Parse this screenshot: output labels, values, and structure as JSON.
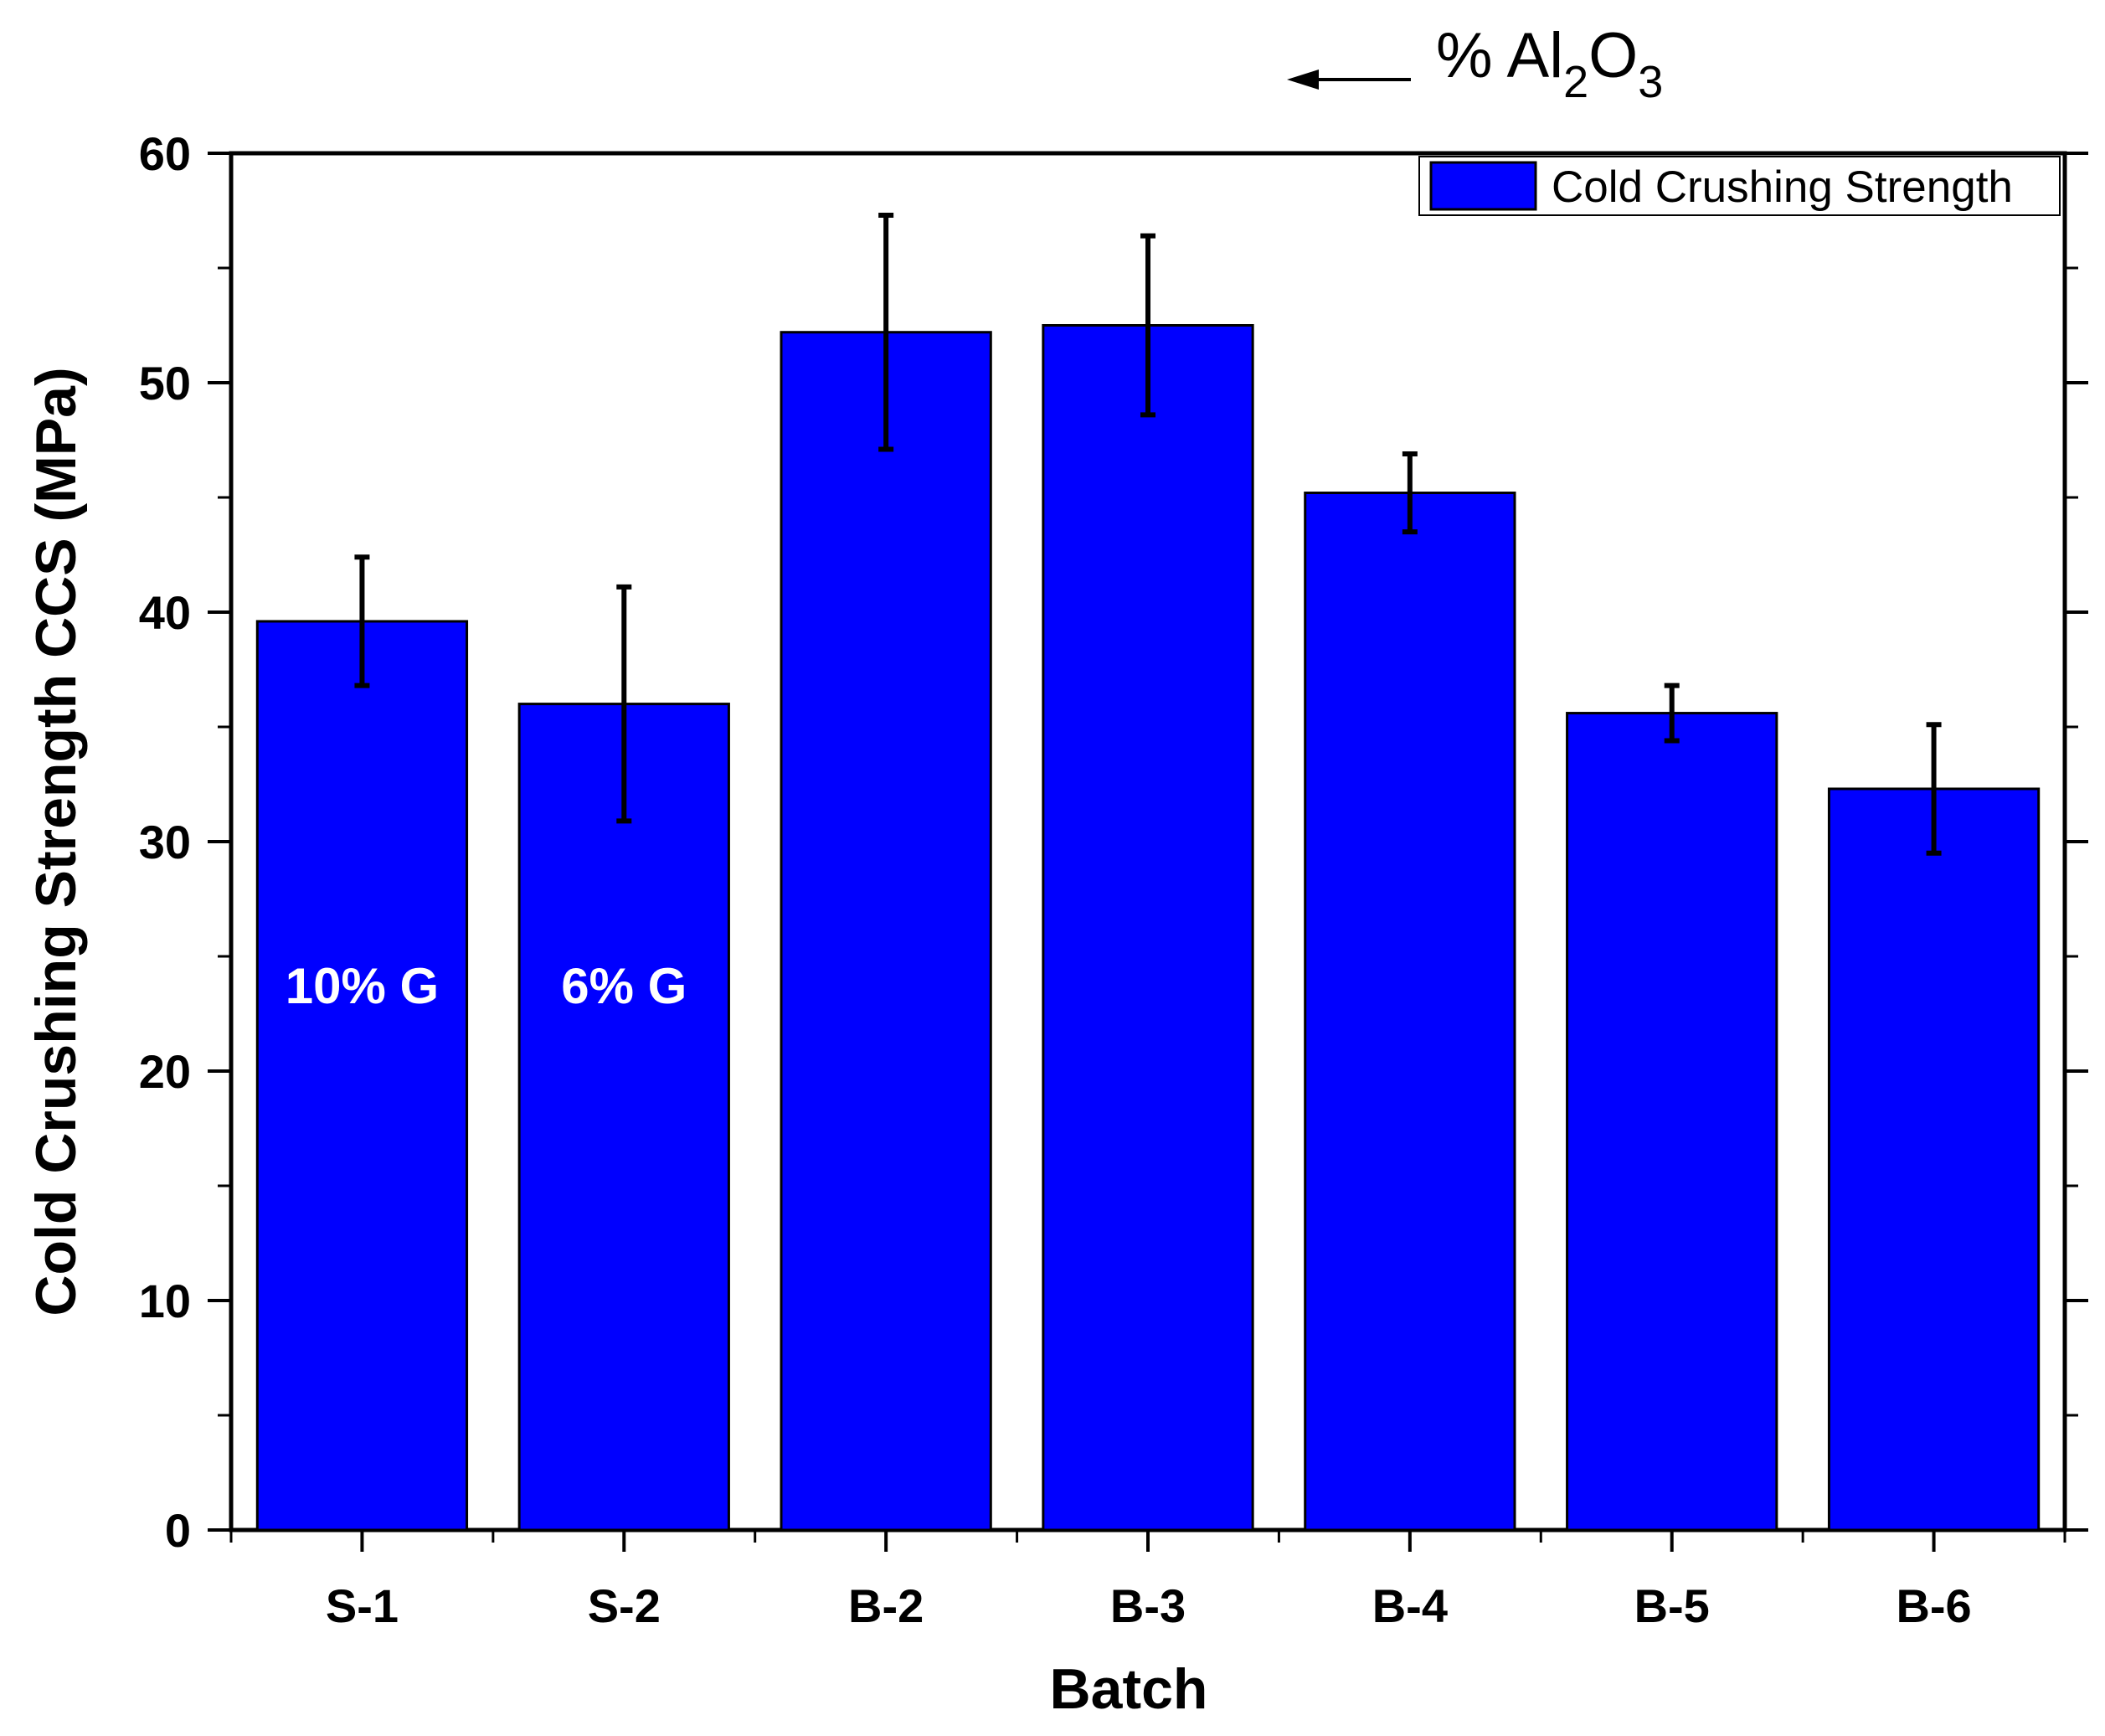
{
  "chart_data": {
    "type": "bar",
    "title": "",
    "xlabel": "Batch",
    "ylabel": "Cold Crushing Strength CCS (MPa)",
    "ylim": [
      0,
      60
    ],
    "yticks": [
      0,
      10,
      20,
      30,
      40,
      50,
      60
    ],
    "categories": [
      "S-1",
      "S-2",
      "B-2",
      "B-3",
      "B-4",
      "B-5",
      "B-6"
    ],
    "series": [
      {
        "name": "Cold Crushing Strength",
        "color": "#0000ff",
        "values": [
          39.6,
          36.0,
          52.2,
          52.5,
          45.2,
          35.6,
          32.3
        ],
        "errors": [
          2.8,
          5.1,
          5.1,
          3.9,
          1.7,
          1.2,
          2.8
        ]
      }
    ],
    "bar_labels": [
      {
        "category": "S-1",
        "text": "10% G"
      },
      {
        "category": "S-2",
        "text": "6% G"
      }
    ],
    "legend": {
      "label": "Cold Crushing Strength",
      "position": "top-right"
    },
    "annotation": {
      "prefix": "% Al",
      "sub1": "2",
      "mid": "O",
      "sub2": "3",
      "arrow": "left"
    }
  }
}
